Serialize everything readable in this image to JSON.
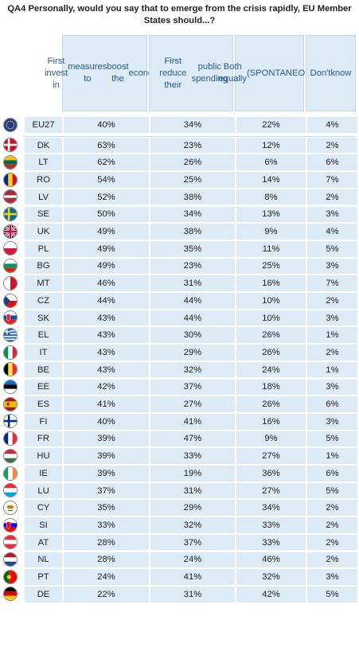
{
  "title": "QA4  Personally, would you say that to emerge from the crisis rapidly, EU Member States should...?",
  "chart_data": {
    "type": "table",
    "columns": [
      "First invest in measures to boost the economy",
      "First reduce their public spending",
      "Both equally (SPONTANEOUS)",
      "Don't know"
    ],
    "rows": [
      {
        "country": "EU27",
        "values": [
          "40%",
          "34%",
          "22%",
          "4%"
        ]
      },
      {
        "country": "DK",
        "values": [
          "63%",
          "23%",
          "12%",
          "2%"
        ]
      },
      {
        "country": "LT",
        "values": [
          "62%",
          "26%",
          "6%",
          "6%"
        ]
      },
      {
        "country": "RO",
        "values": [
          "54%",
          "25%",
          "14%",
          "7%"
        ]
      },
      {
        "country": "LV",
        "values": [
          "52%",
          "38%",
          "8%",
          "2%"
        ]
      },
      {
        "country": "SE",
        "values": [
          "50%",
          "34%",
          "13%",
          "3%"
        ]
      },
      {
        "country": "UK",
        "values": [
          "49%",
          "38%",
          "9%",
          "4%"
        ]
      },
      {
        "country": "PL",
        "values": [
          "49%",
          "35%",
          "11%",
          "5%"
        ]
      },
      {
        "country": "BG",
        "values": [
          "49%",
          "23%",
          "25%",
          "3%"
        ]
      },
      {
        "country": "MT",
        "values": [
          "46%",
          "31%",
          "16%",
          "7%"
        ]
      },
      {
        "country": "CZ",
        "values": [
          "44%",
          "44%",
          "10%",
          "2%"
        ]
      },
      {
        "country": "SK",
        "values": [
          "43%",
          "44%",
          "10%",
          "3%"
        ]
      },
      {
        "country": "EL",
        "values": [
          "43%",
          "30%",
          "26%",
          "1%"
        ]
      },
      {
        "country": "IT",
        "values": [
          "43%",
          "29%",
          "26%",
          "2%"
        ]
      },
      {
        "country": "BE",
        "values": [
          "43%",
          "32%",
          "24%",
          "1%"
        ]
      },
      {
        "country": "EE",
        "values": [
          "42%",
          "37%",
          "18%",
          "3%"
        ]
      },
      {
        "country": "ES",
        "values": [
          "41%",
          "27%",
          "26%",
          "6%"
        ]
      },
      {
        "country": "FI",
        "values": [
          "40%",
          "41%",
          "16%",
          "3%"
        ]
      },
      {
        "country": "FR",
        "values": [
          "39%",
          "47%",
          "9%",
          "5%"
        ]
      },
      {
        "country": "HU",
        "values": [
          "39%",
          "33%",
          "27%",
          "1%"
        ]
      },
      {
        "country": "IE",
        "values": [
          "39%",
          "19%",
          "36%",
          "6%"
        ]
      },
      {
        "country": "LU",
        "values": [
          "37%",
          "31%",
          "27%",
          "5%"
        ]
      },
      {
        "country": "CY",
        "values": [
          "35%",
          "29%",
          "34%",
          "2%"
        ]
      },
      {
        "country": "SI",
        "values": [
          "33%",
          "32%",
          "33%",
          "2%"
        ]
      },
      {
        "country": "AT",
        "values": [
          "28%",
          "37%",
          "33%",
          "2%"
        ]
      },
      {
        "country": "NL",
        "values": [
          "28%",
          "24%",
          "46%",
          "2%"
        ]
      },
      {
        "country": "PT",
        "values": [
          "24%",
          "41%",
          "32%",
          "3%"
        ]
      },
      {
        "country": "DE",
        "values": [
          "22%",
          "31%",
          "42%",
          "5%"
        ]
      }
    ]
  },
  "header_lines": [
    [
      "First invest in",
      "measures to",
      "boost the",
      "economy"
    ],
    [
      "First reduce their",
      "public spending"
    ],
    [
      "Both equally",
      "(SPONTANEO",
      "US)"
    ],
    [
      "Don't",
      "know"
    ]
  ],
  "flags": {
    "EU27": {
      "icon": "eu-flag-icon",
      "type": "eu",
      "colors": [
        "#1f3a93",
        "#f7d417"
      ]
    },
    "DK": {
      "icon": "denmark-flag-icon",
      "type": "nordic",
      "colors": [
        "#c8102e",
        "#ffffff"
      ]
    },
    "LT": {
      "icon": "lithuania-flag-icon",
      "type": "h3",
      "colors": [
        "#fdb913",
        "#006a44",
        "#c1272d"
      ]
    },
    "RO": {
      "icon": "romania-flag-icon",
      "type": "v3",
      "colors": [
        "#002b7f",
        "#fcd116",
        "#ce1126"
      ]
    },
    "LV": {
      "icon": "latvia-flag-icon",
      "type": "latvia",
      "colors": [
        "#9e3039",
        "#ffffff"
      ]
    },
    "SE": {
      "icon": "sweden-flag-icon",
      "type": "nordic",
      "colors": [
        "#006aa7",
        "#fecc00"
      ]
    },
    "UK": {
      "icon": "uk-flag-icon",
      "type": "uk",
      "colors": [
        "#012169",
        "#ffffff",
        "#c8102e"
      ]
    },
    "PL": {
      "icon": "poland-flag-icon",
      "type": "h2",
      "colors": [
        "#ffffff",
        "#dc143c"
      ]
    },
    "BG": {
      "icon": "bulgaria-flag-icon",
      "type": "h3",
      "colors": [
        "#ffffff",
        "#00966e",
        "#d62612"
      ]
    },
    "MT": {
      "icon": "malta-flag-icon",
      "type": "v2",
      "colors": [
        "#ffffff",
        "#cf142b"
      ]
    },
    "CZ": {
      "icon": "czech-flag-icon",
      "type": "czech",
      "colors": [
        "#ffffff",
        "#d7141a",
        "#11457e"
      ]
    },
    "SK": {
      "icon": "slovakia-flag-icon",
      "type": "h3shield",
      "colors": [
        "#ffffff",
        "#0b4ea2",
        "#ee1c25"
      ]
    },
    "EL": {
      "icon": "greece-flag-icon",
      "type": "greece",
      "colors": [
        "#0d5eaf",
        "#ffffff"
      ]
    },
    "IT": {
      "icon": "italy-flag-icon",
      "type": "v3",
      "colors": [
        "#009246",
        "#ffffff",
        "#ce2b37"
      ]
    },
    "BE": {
      "icon": "belgium-flag-icon",
      "type": "v3",
      "colors": [
        "#000000",
        "#fae042",
        "#ed2939"
      ]
    },
    "EE": {
      "icon": "estonia-flag-icon",
      "type": "h3",
      "colors": [
        "#0072ce",
        "#000000",
        "#ffffff"
      ]
    },
    "ES": {
      "icon": "spain-flag-icon",
      "type": "spain",
      "colors": [
        "#aa151b",
        "#f1bf00"
      ]
    },
    "FI": {
      "icon": "finland-flag-icon",
      "type": "nordic",
      "colors": [
        "#ffffff",
        "#003580"
      ]
    },
    "FR": {
      "icon": "france-flag-icon",
      "type": "v3",
      "colors": [
        "#002395",
        "#ffffff",
        "#ed2939"
      ]
    },
    "HU": {
      "icon": "hungary-flag-icon",
      "type": "h3",
      "colors": [
        "#cd2a3e",
        "#ffffff",
        "#436f4d"
      ]
    },
    "IE": {
      "icon": "ireland-flag-icon",
      "type": "v3",
      "colors": [
        "#169b62",
        "#ffffff",
        "#ff883e"
      ]
    },
    "LU": {
      "icon": "luxembourg-flag-icon",
      "type": "h3",
      "colors": [
        "#ed2939",
        "#ffffff",
        "#00a1de"
      ]
    },
    "CY": {
      "icon": "cyprus-flag-icon",
      "type": "cyprus",
      "colors": [
        "#ffffff",
        "#d57800",
        "#4e5b31"
      ]
    },
    "SI": {
      "icon": "slovenia-flag-icon",
      "type": "h3shield",
      "colors": [
        "#ffffff",
        "#0000ff",
        "#ff0000"
      ]
    },
    "AT": {
      "icon": "austria-flag-icon",
      "type": "h3",
      "colors": [
        "#ed2939",
        "#ffffff",
        "#ed2939"
      ]
    },
    "NL": {
      "icon": "netherlands-flag-icon",
      "type": "h3",
      "colors": [
        "#ae1c28",
        "#ffffff",
        "#21468b"
      ]
    },
    "PT": {
      "icon": "portugal-flag-icon",
      "type": "portugal",
      "colors": [
        "#006600",
        "#ff0000",
        "#ffcc00"
      ]
    },
    "DE": {
      "icon": "germany-flag-icon",
      "type": "h3",
      "colors": [
        "#000000",
        "#dd0000",
        "#ffce00"
      ]
    }
  }
}
